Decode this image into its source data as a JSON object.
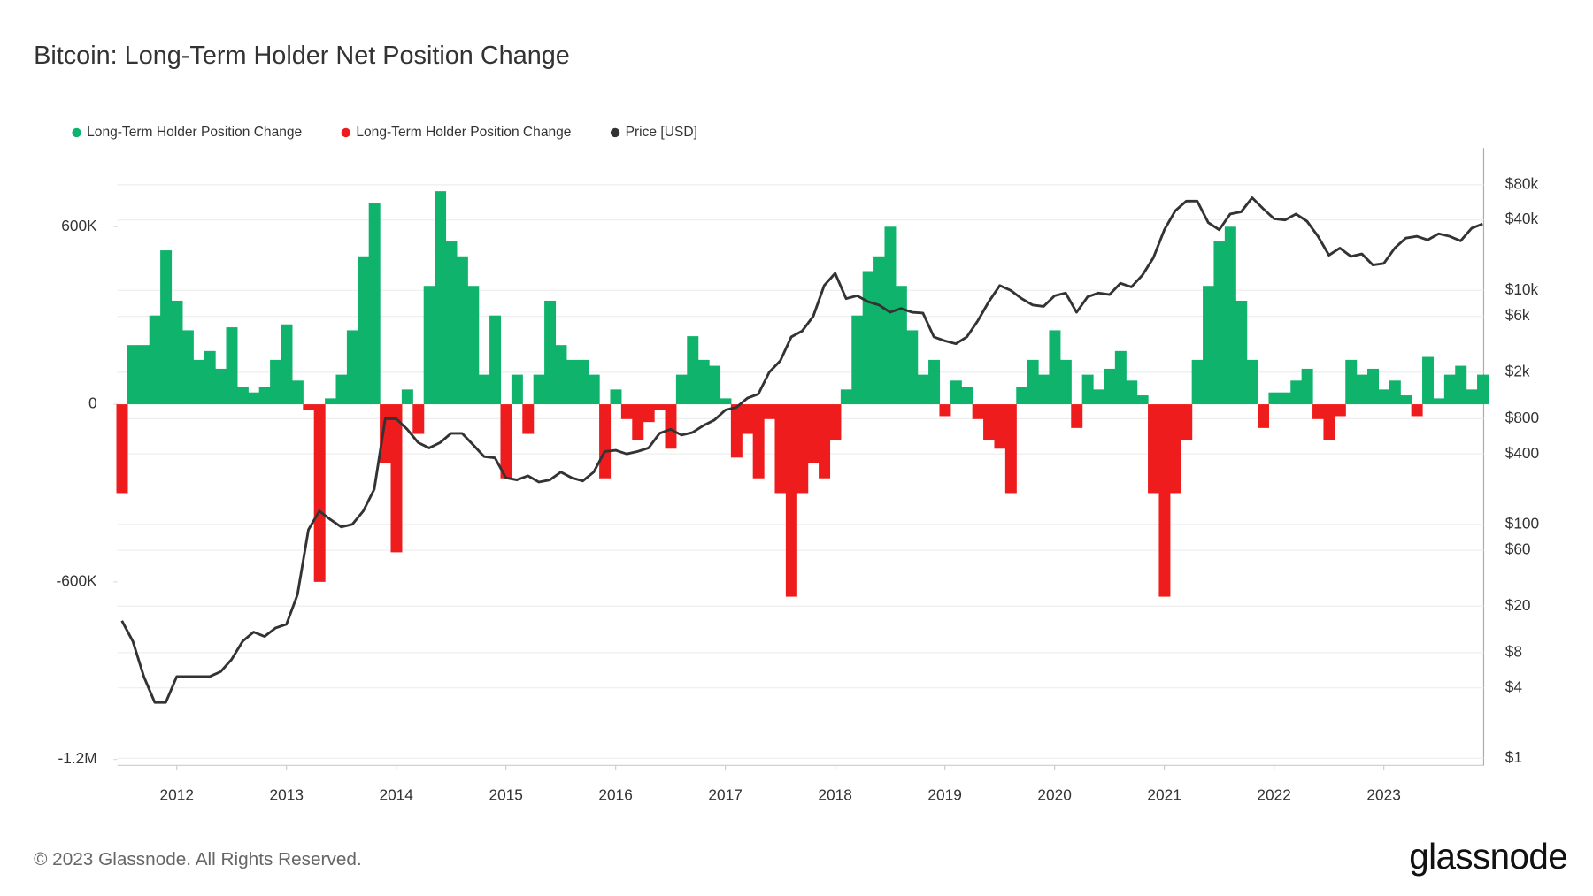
{
  "chart_data": {
    "type": "bar",
    "title": "Bitcoin: Long-Term Holder Net Position Change",
    "x": [
      2011.5,
      2011.6,
      2011.7,
      2011.8,
      2011.9,
      2012.0,
      2012.1,
      2012.2,
      2012.3,
      2012.4,
      2012.5,
      2012.6,
      2012.7,
      2012.8,
      2012.9,
      2013.0,
      2013.1,
      2013.2,
      2013.3,
      2013.4,
      2013.5,
      2013.6,
      2013.7,
      2013.8,
      2013.9,
      2014.0,
      2014.1,
      2014.2,
      2014.3,
      2014.4,
      2014.5,
      2014.6,
      2014.7,
      2014.8,
      2014.9,
      2015.0,
      2015.1,
      2015.2,
      2015.3,
      2015.4,
      2015.5,
      2015.6,
      2015.7,
      2015.8,
      2015.9,
      2016.0,
      2016.1,
      2016.2,
      2016.3,
      2016.4,
      2016.5,
      2016.6,
      2016.7,
      2016.8,
      2016.9,
      2017.0,
      2017.1,
      2017.2,
      2017.3,
      2017.4,
      2017.5,
      2017.6,
      2017.7,
      2017.8,
      2017.9,
      2018.0,
      2018.1,
      2018.2,
      2018.3,
      2018.4,
      2018.5,
      2018.6,
      2018.7,
      2018.8,
      2018.9,
      2019.0,
      2019.1,
      2019.2,
      2019.3,
      2019.4,
      2019.5,
      2019.6,
      2019.7,
      2019.8,
      2019.9,
      2020.0,
      2020.1,
      2020.2,
      2020.3,
      2020.4,
      2020.5,
      2020.6,
      2020.7,
      2020.8,
      2020.9,
      2021.0,
      2021.1,
      2021.2,
      2021.3,
      2021.4,
      2021.5,
      2021.6,
      2021.7,
      2021.8,
      2021.9,
      2022.0,
      2022.1,
      2022.2,
      2022.3,
      2022.4,
      2022.5,
      2022.6,
      2022.7,
      2022.8,
      2022.9,
      2023.0,
      2023.1,
      2023.2,
      2023.3,
      2023.4,
      2023.5,
      2023.6,
      2023.7,
      2023.8,
      2023.9
    ],
    "series": [
      {
        "name": "Long-Term Holder Position Change",
        "color": "#0fb36b",
        "values": [
          null,
          200000,
          200000,
          300000,
          520000,
          350000,
          250000,
          150000,
          180000,
          120000,
          260000,
          60000,
          40000,
          60000,
          150000,
          270000,
          80000,
          null,
          null,
          20000,
          100000,
          250000,
          500000,
          680000,
          null,
          null,
          50000,
          null,
          400000,
          720000,
          550000,
          500000,
          400000,
          100000,
          300000,
          null,
          100000,
          null,
          100000,
          350000,
          200000,
          150000,
          150000,
          100000,
          null,
          50000,
          null,
          null,
          null,
          null,
          null,
          100000,
          230000,
          150000,
          130000,
          20000,
          null,
          null,
          null,
          null,
          null,
          null,
          null,
          null,
          null,
          null,
          50000,
          300000,
          450000,
          500000,
          600000,
          400000,
          250000,
          100000,
          150000,
          null,
          80000,
          60000,
          null,
          null,
          null,
          null,
          60000,
          150000,
          100000,
          250000,
          150000,
          null,
          100000,
          50000,
          120000,
          180000,
          80000,
          30000,
          null,
          null,
          null,
          null,
          150000,
          400000,
          550000,
          600000,
          350000,
          150000,
          null,
          40000,
          40000,
          80000,
          120000,
          null,
          null,
          null,
          150000,
          100000,
          120000,
          50000,
          80000,
          30000,
          null,
          160000,
          20000,
          100000,
          130000,
          50000,
          100000
        ]
      },
      {
        "name": "Long-Term Holder Position Change",
        "color": "#ee1c1c",
        "values": [
          -300000,
          null,
          null,
          null,
          null,
          null,
          null,
          null,
          null,
          null,
          null,
          null,
          null,
          null,
          null,
          null,
          null,
          -20000,
          -600000,
          null,
          null,
          null,
          null,
          null,
          -200000,
          -500000,
          null,
          -100000,
          null,
          null,
          null,
          null,
          null,
          null,
          null,
          -250000,
          null,
          -100000,
          null,
          null,
          null,
          null,
          null,
          null,
          -250000,
          null,
          -50000,
          -120000,
          -60000,
          -20000,
          -150000,
          null,
          null,
          null,
          null,
          null,
          -180000,
          -100000,
          -250000,
          -50000,
          -300000,
          -650000,
          -300000,
          -200000,
          -250000,
          -120000,
          null,
          null,
          null,
          null,
          null,
          null,
          null,
          null,
          null,
          -40000,
          null,
          null,
          -50000,
          -120000,
          -150000,
          -300000,
          null,
          null,
          null,
          null,
          null,
          -80000,
          null,
          null,
          null,
          null,
          null,
          null,
          -300000,
          -650000,
          -300000,
          -120000,
          null,
          null,
          null,
          null,
          null,
          null,
          -80000,
          null,
          null,
          null,
          null,
          -50000,
          -120000,
          -40000,
          null,
          null,
          null,
          null,
          null,
          null,
          -40000,
          null,
          null,
          null,
          null,
          null,
          null
        ]
      },
      {
        "name": "Price [USD]",
        "color": "#333333",
        "axis": "y2",
        "values": [
          15,
          10,
          5,
          3,
          3,
          5,
          5,
          5,
          5,
          5.5,
          7,
          10,
          12,
          11,
          13,
          14,
          25,
          90,
          130,
          110,
          95,
          100,
          130,
          200,
          800,
          800,
          650,
          500,
          450,
          500,
          600,
          600,
          480,
          380,
          370,
          250,
          240,
          260,
          230,
          240,
          280,
          250,
          235,
          280,
          420,
          430,
          400,
          420,
          450,
          600,
          650,
          580,
          610,
          700,
          780,
          950,
          1000,
          1200,
          1300,
          2000,
          2500,
          4000,
          4500,
          6000,
          11000,
          14000,
          8500,
          9000,
          8000,
          7500,
          6500,
          7000,
          6500,
          6400,
          4000,
          3700,
          3500,
          4000,
          5500,
          8000,
          11000,
          10000,
          8500,
          7500,
          7300,
          9000,
          9500,
          6500,
          8800,
          9500,
          9200,
          11500,
          10700,
          13500,
          19000,
          33000,
          48000,
          58000,
          58000,
          38000,
          33000,
          45000,
          47000,
          62000,
          50000,
          41000,
          40000,
          45000,
          39000,
          29000,
          20000,
          23000,
          19500,
          20500,
          16500,
          17000,
          23000,
          28000,
          29000,
          27000,
          30500,
          29000,
          26500,
          34000,
          37000
        ]
      }
    ],
    "xlim": [
      2011.46,
      2023.91
    ],
    "xticks": [
      2012,
      2013,
      2014,
      2015,
      2016,
      2017,
      2018,
      2019,
      2020,
      2021,
      2022,
      2023
    ],
    "ylim": [
      -1220000,
      866000
    ],
    "yticks": [
      {
        "value": -1200000,
        "label": "-1.2M"
      },
      {
        "value": -600000,
        "label": "-600K"
      },
      0,
      {
        "value": 600000,
        "label": "600K"
      }
    ],
    "y2lim": [
      0.87,
      165000
    ],
    "y2scale": "log",
    "y2ticks": [
      {
        "value": 1,
        "label": "$1"
      },
      {
        "value": 4,
        "label": "$4"
      },
      {
        "value": 8,
        "label": "$8"
      },
      {
        "value": 20,
        "label": "$20"
      },
      {
        "value": 60,
        "label": "$60"
      },
      {
        "value": 100,
        "label": "$100"
      },
      {
        "value": 400,
        "label": "$400"
      },
      {
        "value": 800,
        "label": "$800"
      },
      {
        "value": 2000,
        "label": "$2k"
      },
      {
        "value": 6000,
        "label": "$6k"
      },
      {
        "value": 10000,
        "label": "$10k"
      },
      {
        "value": 40000,
        "label": "$40k"
      },
      {
        "value": 80000,
        "label": "$80k"
      }
    ],
    "grid": true,
    "legend": "top-left"
  },
  "footer": "© 2023 Glassnode. All Rights Reserved.",
  "brand": "glassnode"
}
